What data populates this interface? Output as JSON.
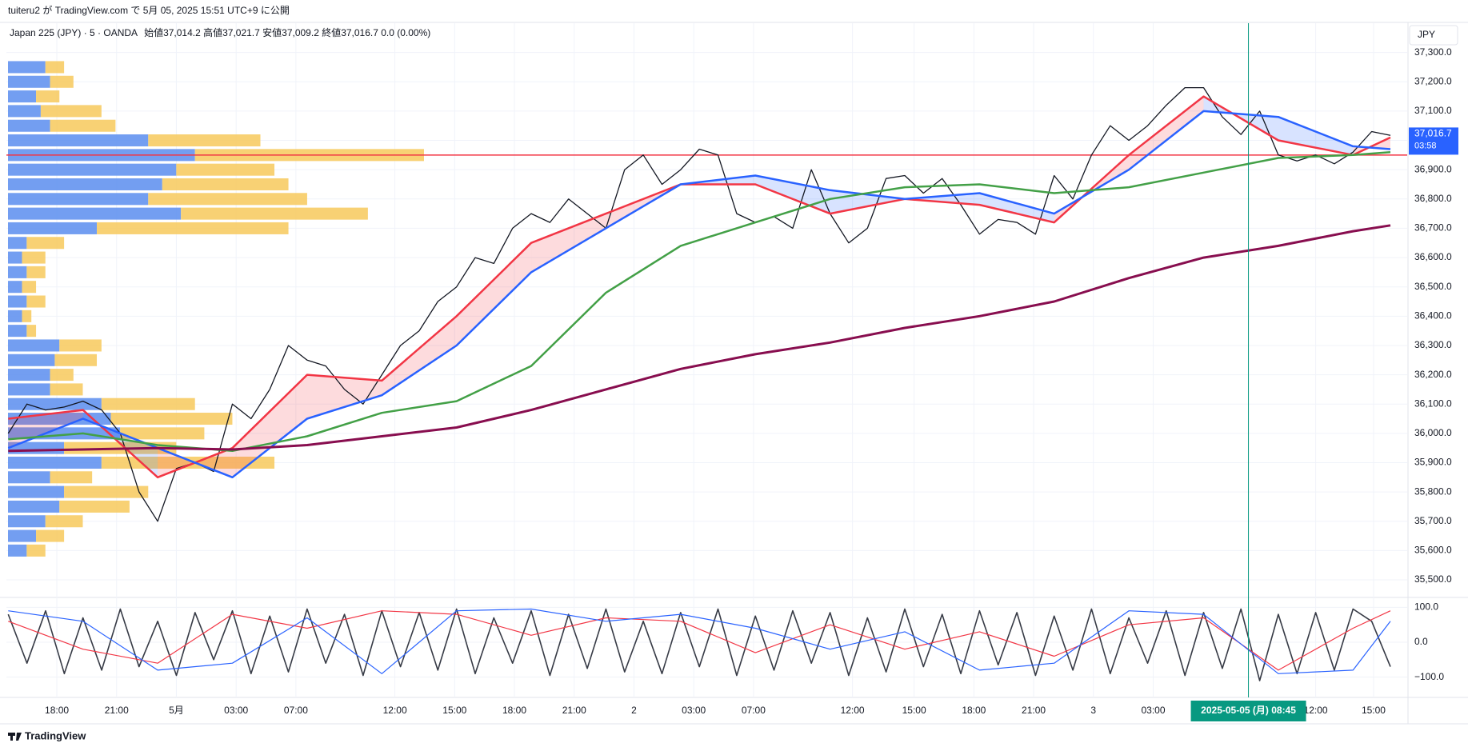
{
  "header": {
    "published": "tuiteru2 が TradingView.com で 5月 05, 2025 15:51 UTC+9 に公開",
    "symbol": "Japan 225 (JPY) · 5 · OANDA",
    "ohlc": "始値37,014.2  高値37,021.7  安値37,009.2  終値37,016.7  0.0 (0.00%)",
    "currency": "JPY",
    "brand": "TradingView"
  },
  "chart_data": [
    {
      "type": "line",
      "xlim": [
        -0.1,
        74.9
      ],
      "ylim": [
        35440,
        37400
      ],
      "grid": true,
      "yticks": [
        {
          "value": 35500,
          "label": "35,500.0"
        },
        {
          "value": 35600,
          "label": "35,600.0"
        },
        {
          "value": 35700,
          "label": "35,700.0"
        },
        {
          "value": 35800,
          "label": "35,800.0"
        },
        {
          "value": 35900,
          "label": "35,900.0"
        },
        {
          "value": 36000,
          "label": "36,000.0"
        },
        {
          "value": 36100,
          "label": "36,100.0"
        },
        {
          "value": 36200,
          "label": "36,200.0"
        },
        {
          "value": 36300,
          "label": "36,300.0"
        },
        {
          "value": 36400,
          "label": "36,400.0"
        },
        {
          "value": 36500,
          "label": "36,500.0"
        },
        {
          "value": 36600,
          "label": "36,600.0"
        },
        {
          "value": 36700,
          "label": "36,700.0"
        },
        {
          "value": 36800,
          "label": "36,800.0"
        },
        {
          "value": 36900,
          "label": "36,900.0"
        },
        {
          "value": 37000,
          "label": "37,000.0"
        },
        {
          "value": 37100,
          "label": "37,100.0"
        },
        {
          "value": 37200,
          "label": "37,200.0"
        },
        {
          "value": 37300,
          "label": "37,300.0"
        }
      ],
      "xticks": [
        {
          "value": 2.6,
          "label": "18:00"
        },
        {
          "value": 5.8,
          "label": "21:00"
        },
        {
          "value": 9.0,
          "label": "5月"
        },
        {
          "value": 12.2,
          "label": "03:00"
        },
        {
          "value": 15.4,
          "label": "07:00"
        },
        {
          "value": 20.7,
          "label": "12:00"
        },
        {
          "value": 23.9,
          "label": "15:00"
        },
        {
          "value": 27.1,
          "label": "18:00"
        },
        {
          "value": 30.3,
          "label": "21:00"
        },
        {
          "value": 33.5,
          "label": "2"
        },
        {
          "value": 36.7,
          "label": "03:00"
        },
        {
          "value": 39.9,
          "label": "07:00"
        },
        {
          "value": 45.2,
          "label": "12:00"
        },
        {
          "value": 48.5,
          "label": "15:00"
        },
        {
          "value": 51.7,
          "label": "18:00"
        },
        {
          "value": 54.9,
          "label": "21:00"
        },
        {
          "value": 58.1,
          "label": "3"
        },
        {
          "value": 61.3,
          "label": "03:00"
        },
        {
          "value": 70.0,
          "label": "12:00"
        },
        {
          "value": 73.1,
          "label": "15:00"
        }
      ],
      "series": [
        {
          "color": "#131722",
          "width": 1.3,
          "values": [
            36000,
            36100,
            36080,
            36090,
            36110,
            36080,
            36000,
            35800,
            35700,
            35880,
            35900,
            35870,
            36100,
            36050,
            36150,
            36300,
            36250,
            36230,
            36150,
            36100,
            36200,
            36300,
            36350,
            36450,
            36500,
            36600,
            36580,
            36700,
            36750,
            36720,
            36800,
            36750,
            36700,
            36900,
            36950,
            36850,
            36900,
            36970,
            36950,
            36750,
            36720,
            36740,
            36700,
            36900,
            36750,
            36650,
            36700,
            36870,
            36880,
            36820,
            36870,
            36780,
            36680,
            36730,
            36720,
            36680,
            36880,
            36800,
            36950,
            37050,
            37000,
            37050,
            37120,
            37180,
            37180,
            37080,
            37020,
            37100,
            36950,
            36930,
            36950,
            36920,
            36960,
            37030,
            37017
          ]
        },
        {
          "color": "#f23645",
          "width": 2.5,
          "x": [
            0,
            4,
            8,
            12,
            16,
            20,
            24,
            28,
            32,
            36,
            40,
            44,
            48,
            52,
            56,
            60,
            64,
            68,
            72,
            74
          ],
          "values": [
            36050,
            36080,
            35850,
            35950,
            36200,
            36180,
            36400,
            36650,
            36750,
            36850,
            36850,
            36750,
            36800,
            36780,
            36720,
            36950,
            37150,
            37000,
            36950,
            37010
          ]
        },
        {
          "color": "#2962ff",
          "width": 2.5,
          "x": [
            0,
            4,
            8,
            12,
            16,
            20,
            24,
            28,
            32,
            36,
            40,
            44,
            48,
            52,
            56,
            60,
            64,
            68,
            72,
            74
          ],
          "values": [
            35950,
            36050,
            35950,
            35850,
            36050,
            36130,
            36300,
            36550,
            36700,
            36850,
            36880,
            36830,
            36800,
            36820,
            36750,
            36900,
            37100,
            37080,
            36980,
            36970
          ]
        },
        {
          "color": "#43a047",
          "width": 2.5,
          "x": [
            0,
            4,
            8,
            12,
            16,
            20,
            24,
            28,
            32,
            36,
            40,
            44,
            48,
            52,
            56,
            60,
            64,
            68,
            72,
            74
          ],
          "values": [
            35980,
            36000,
            35960,
            35940,
            35990,
            36070,
            36110,
            36230,
            36480,
            36640,
            36720,
            36800,
            36840,
            36850,
            36820,
            36840,
            36890,
            36940,
            36950,
            36960
          ]
        },
        {
          "color": "#880e4f",
          "width": 3,
          "x": [
            0,
            4,
            8,
            12,
            16,
            20,
            24,
            28,
            32,
            36,
            40,
            44,
            48,
            52,
            56,
            60,
            64,
            68,
            72,
            74
          ],
          "values": [
            35940,
            35945,
            35950,
            35945,
            35960,
            35990,
            36020,
            36080,
            36150,
            36220,
            36270,
            36310,
            36360,
            36400,
            36450,
            36530,
            36600,
            36640,
            36690,
            36710
          ]
        }
      ],
      "hline": {
        "value": 36950,
        "color": "#f23645"
      },
      "last_price": {
        "value": 37016.7,
        "label": "37,016.7",
        "countdown": "03:58",
        "color": "#2962ff"
      },
      "crosshair": {
        "x": 66.4,
        "label": "2025-05-05 (月)  08:45",
        "color": "#089981"
      },
      "volume_profile": {
        "levels": [
          37250,
          37200,
          37150,
          37100,
          37050,
          37000,
          36950,
          36900,
          36850,
          36800,
          36750,
          36700,
          36650,
          36600,
          36550,
          36500,
          36450,
          36400,
          36350,
          36300,
          36250,
          36200,
          36150,
          36100,
          36050,
          36000,
          35950,
          35900,
          35850,
          35800,
          35750,
          35700,
          35650,
          35600
        ],
        "buy": [
          40,
          45,
          30,
          35,
          45,
          150,
          200,
          180,
          165,
          150,
          185,
          95,
          20,
          15,
          20,
          15,
          20,
          15,
          20,
          55,
          50,
          45,
          45,
          100,
          110,
          120,
          60,
          100,
          45,
          60,
          55,
          40,
          30,
          20
        ],
        "sell": [
          20,
          25,
          25,
          65,
          70,
          120,
          245,
          105,
          135,
          170,
          200,
          205,
          40,
          25,
          20,
          15,
          20,
          10,
          10,
          45,
          45,
          25,
          35,
          100,
          130,
          90,
          120,
          185,
          45,
          90,
          75,
          40,
          30,
          20
        ],
        "colors": [
          "#5b8def",
          "#f7c95c"
        ]
      }
    },
    {
      "type": "line",
      "ylim": [
        -158,
        126
      ],
      "yticks": [
        {
          "value": 100,
          "label": "100.0"
        },
        {
          "value": 0,
          "label": "0.0"
        },
        {
          "value": -100,
          "label": "−100.0"
        }
      ],
      "series": [
        {
          "color": "#363a45",
          "width": 1.6,
          "values": [
            80,
            -60,
            90,
            -90,
            70,
            -80,
            95,
            -70,
            60,
            -95,
            85,
            -50,
            90,
            -90,
            75,
            -85,
            95,
            -60,
            80,
            -95,
            90,
            -70,
            85,
            -80,
            95,
            -90,
            70,
            -60,
            90,
            -95,
            80,
            -75,
            95,
            -85,
            60,
            -90,
            85,
            -70,
            95,
            -95,
            75,
            -80,
            90,
            -60,
            85,
            -95,
            70,
            -85,
            95,
            -70,
            80,
            -90,
            90,
            -65,
            85,
            -95,
            75,
            -80,
            95,
            -90,
            70,
            -60,
            90,
            -95,
            85,
            -75,
            95,
            -110,
            80,
            -90,
            85,
            -80,
            95,
            60,
            -70
          ]
        },
        {
          "color": "#f23645",
          "width": 1.2,
          "x": [
            0,
            4,
            8,
            12,
            16,
            20,
            24,
            28,
            32,
            36,
            40,
            44,
            48,
            52,
            56,
            60,
            64,
            68,
            72,
            74
          ],
          "values": [
            60,
            -20,
            -60,
            80,
            40,
            90,
            80,
            20,
            70,
            60,
            -30,
            50,
            -20,
            30,
            -40,
            50,
            70,
            -80,
            40,
            90
          ]
        },
        {
          "color": "#2962ff",
          "width": 1.2,
          "x": [
            0,
            4,
            8,
            12,
            16,
            20,
            24,
            28,
            32,
            36,
            40,
            44,
            48,
            52,
            56,
            60,
            64,
            68,
            72,
            74
          ],
          "values": [
            90,
            60,
            -80,
            -60,
            70,
            -90,
            90,
            95,
            60,
            80,
            40,
            -20,
            30,
            -80,
            -60,
            90,
            80,
            -90,
            -80,
            60
          ]
        }
      ]
    }
  ]
}
